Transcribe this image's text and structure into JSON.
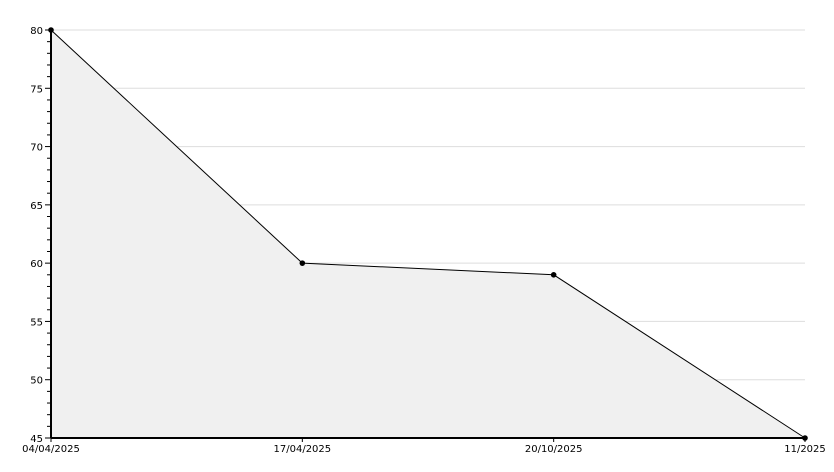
{
  "chart_data": {
    "type": "area",
    "categories": [
      "04/04/2025",
      "17/04/2025",
      "20/10/2025",
      "11/2025"
    ],
    "values": [
      80,
      60,
      59,
      45
    ],
    "title": "",
    "xlabel": "",
    "ylabel": "",
    "ylim": [
      45,
      80
    ],
    "yticks": [
      45,
      50,
      55,
      60,
      65,
      70,
      75,
      80
    ],
    "grid": true,
    "colors": {
      "fill": "#f0f0f0",
      "line": "#000000",
      "grid": "#dddddd"
    }
  }
}
